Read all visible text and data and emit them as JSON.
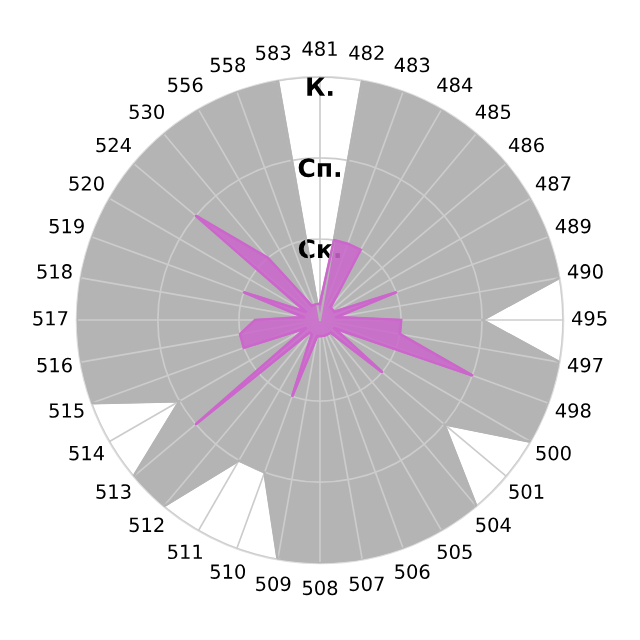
{
  "chart_data": {
    "type": "radar",
    "categories": [
      "481",
      "482",
      "483",
      "484",
      "485",
      "486",
      "487",
      "489",
      "490",
      "495",
      "497",
      "498",
      "500",
      "501",
      "504",
      "505",
      "506",
      "507",
      "508",
      "509",
      "510",
      "511",
      "512",
      "513",
      "514",
      "515",
      "516",
      "517",
      "518",
      "519",
      "520",
      "524",
      "530",
      "556",
      "558",
      "583"
    ],
    "series": [
      {
        "color": "#b4b4b4",
        "values": [
          0,
          3,
          3,
          3,
          3,
          3,
          3,
          3,
          3,
          2,
          3,
          3,
          3,
          2,
          3,
          3,
          3,
          3,
          3,
          3,
          2,
          2,
          3,
          3,
          2,
          3,
          3,
          3,
          3,
          3,
          3,
          3,
          3,
          3,
          3,
          3
        ]
      },
      {
        "color": "#cc66cc",
        "values": [
          0.2,
          1,
          1,
          1,
          0.2,
          0.2,
          0.2,
          1,
          0.2,
          1,
          1,
          2,
          0.2,
          1,
          0.2,
          0.2,
          0.2,
          0.2,
          0.2,
          0.2,
          1,
          0.2,
          0.2,
          2,
          0.2,
          1,
          1,
          0.8,
          0.2,
          1,
          0.2,
          2,
          1,
          0.2,
          0.2,
          0.2
        ]
      }
    ],
    "ylim": [
      0,
      3
    ],
    "yticks": [
      {
        "value": 1,
        "label": "Ск."
      },
      {
        "value": 2,
        "label": "Сп."
      },
      {
        "value": 3,
        "label": "К."
      }
    ],
    "grid": true
  }
}
